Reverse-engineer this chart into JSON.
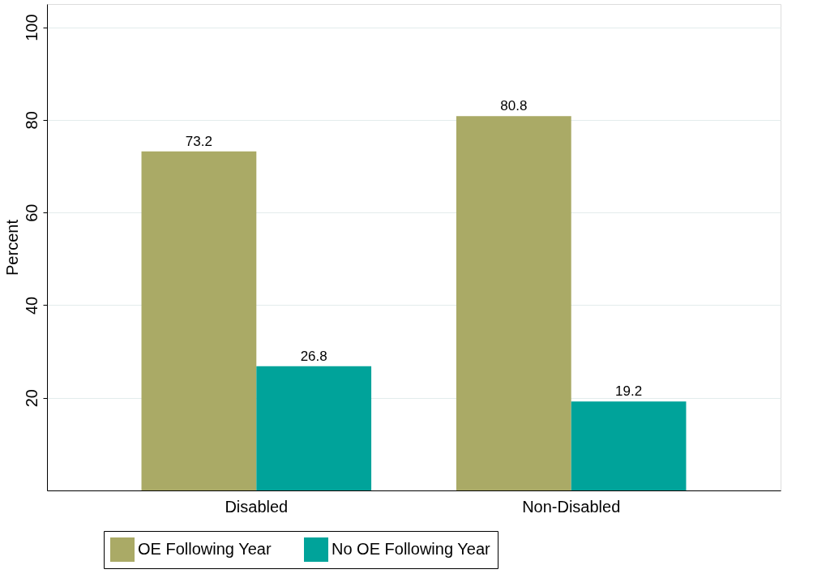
{
  "chart_data": {
    "type": "bar",
    "ylabel": "Percent",
    "categories": [
      "Disabled",
      "Non-Disabled"
    ],
    "series": [
      {
        "name": "OE Following Year",
        "color": "#aaaa66",
        "values": [
          73.2,
          80.8
        ]
      },
      {
        "name": "No OE Following Year",
        "color": "#00a39a",
        "values": [
          26.8,
          19.2
        ]
      }
    ],
    "ylim": [
      0,
      105
    ],
    "yticks": [
      20,
      40,
      60,
      80,
      100
    ],
    "grid": "y",
    "legend": "bottom",
    "data_labels": true
  }
}
